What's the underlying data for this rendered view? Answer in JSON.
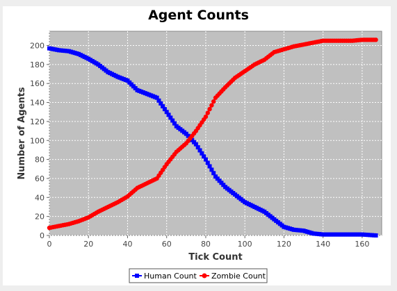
{
  "chart_data": {
    "type": "line",
    "title": "Agent Counts",
    "xlabel": "Tick Count",
    "ylabel": "Number of Agents",
    "xlim": [
      0,
      170
    ],
    "ylim": [
      0,
      215
    ],
    "xticks": [
      0,
      20,
      40,
      60,
      80,
      100,
      120,
      140,
      160
    ],
    "yticks": [
      0,
      20,
      40,
      60,
      80,
      100,
      120,
      140,
      160,
      180,
      200
    ],
    "grid": true,
    "legend_position": "bottom-center",
    "series": [
      {
        "name": "Human Count",
        "color": "#0000ff",
        "marker": "square",
        "x": [
          0,
          5,
          10,
          15,
          20,
          25,
          30,
          35,
          40,
          45,
          50,
          55,
          60,
          65,
          70,
          75,
          80,
          85,
          90,
          95,
          100,
          105,
          110,
          115,
          120,
          125,
          130,
          135,
          140,
          145,
          150,
          155,
          160,
          167
        ],
        "values": [
          197,
          195,
          194,
          191,
          186,
          180,
          172,
          167,
          163,
          153,
          149,
          145,
          130,
          115,
          107,
          96,
          80,
          62,
          51,
          43,
          35,
          30,
          25,
          17,
          9,
          6,
          5,
          2,
          1,
          1,
          1,
          1,
          1,
          0
        ]
      },
      {
        "name": "Zombie Count",
        "color": "#ff0000",
        "marker": "circle",
        "x": [
          0,
          5,
          10,
          15,
          20,
          25,
          30,
          35,
          40,
          45,
          50,
          55,
          60,
          65,
          70,
          75,
          80,
          85,
          90,
          95,
          100,
          105,
          110,
          115,
          120,
          125,
          130,
          135,
          140,
          145,
          150,
          155,
          160,
          167
        ],
        "values": [
          8,
          10,
          12,
          15,
          19,
          25,
          30,
          35,
          41,
          50,
          55,
          60,
          75,
          88,
          97,
          110,
          125,
          145,
          156,
          166,
          173,
          180,
          185,
          193,
          196,
          199,
          201,
          203,
          205,
          205,
          205,
          205,
          206,
          206
        ]
      }
    ]
  }
}
